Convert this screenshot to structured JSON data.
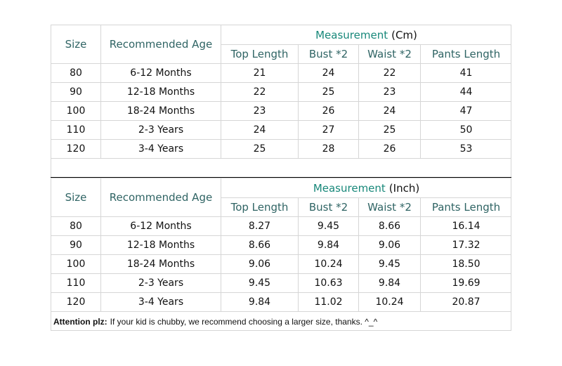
{
  "tables": [
    {
      "title": "Measurement",
      "unit": "(Cm)",
      "headers": [
        "Size",
        "Recommended Age",
        "Top Length",
        "Bust *2",
        "Waist *2",
        "Pants Length"
      ],
      "rows": [
        [
          "80",
          "6-12 Months",
          "21",
          "24",
          "22",
          "41"
        ],
        [
          "90",
          "12-18 Months",
          "22",
          "25",
          "23",
          "44"
        ],
        [
          "100",
          "18-24 Months",
          "23",
          "26",
          "24",
          "47"
        ],
        [
          "110",
          "2-3 Years",
          "24",
          "27",
          "25",
          "50"
        ],
        [
          "120",
          "3-4 Years",
          "25",
          "28",
          "26",
          "53"
        ]
      ]
    },
    {
      "title": "Measurement",
      "unit": "(Inch)",
      "headers": [
        "Size",
        "Recommended Age",
        "Top Length",
        "Bust *2",
        "Waist *2",
        "Pants Length"
      ],
      "rows": [
        [
          "80",
          "6-12 Months",
          "8.27",
          "9.45",
          "8.66",
          "16.14"
        ],
        [
          "90",
          "12-18 Months",
          "8.66",
          "9.84",
          "9.06",
          "17.32"
        ],
        [
          "100",
          "18-24 Months",
          "9.06",
          "10.24",
          "9.45",
          "18.50"
        ],
        [
          "110",
          "2-3 Years",
          "9.45",
          "10.63",
          "9.84",
          "19.69"
        ],
        [
          "120",
          "3-4 Years",
          "9.84",
          "11.02",
          "10.24",
          "20.87"
        ]
      ]
    }
  ],
  "note": {
    "label": "Attention plz:",
    "text": "If your kid is chubby, we recommend choosing a larger size, thanks. ^_^"
  }
}
